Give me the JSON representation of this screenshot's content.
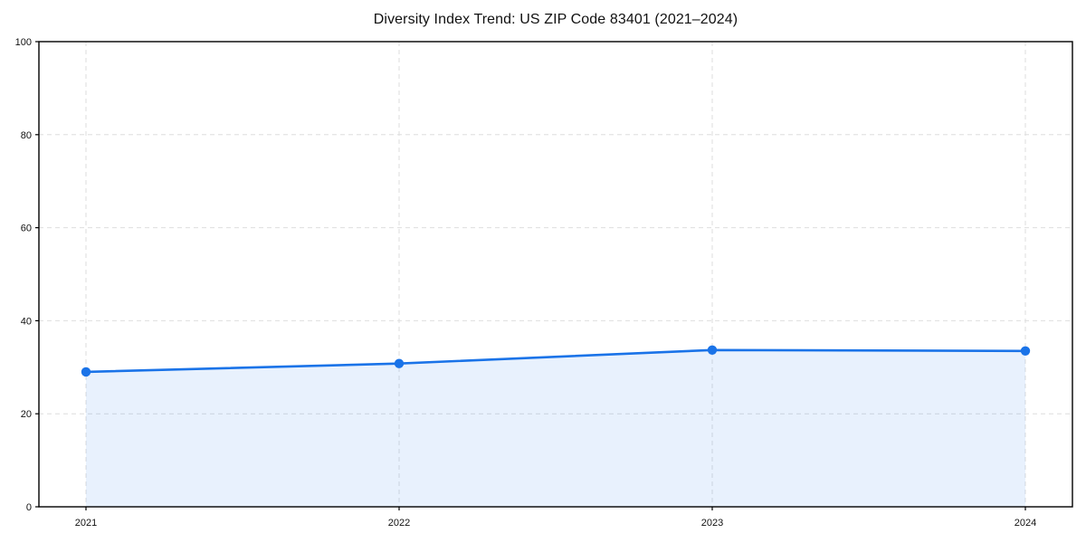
{
  "page": {
    "background": "#ffffff"
  },
  "chart_data": {
    "type": "line",
    "title": "Diversity Index Trend: US ZIP Code 83401 (2021–2024)",
    "x": [
      "2021",
      "2022",
      "2023",
      "2024"
    ],
    "series": [
      {
        "name": "Diversity Index",
        "values": [
          29.0,
          30.8,
          33.7,
          33.5
        ]
      }
    ],
    "xlabel": "",
    "ylabel": "",
    "ylim": [
      0,
      100
    ],
    "yticks": [
      0,
      20,
      40,
      60,
      80,
      100
    ],
    "grid": "dashed",
    "legend": "none",
    "marker": "circle",
    "area_fill": true,
    "colors": {
      "line": "#1a73e8",
      "marker": "#1a73e8",
      "fill": "#1a73e8",
      "fill_opacity": 0.1,
      "grid": "#dedede",
      "spine": "#000000",
      "text": "#111111"
    }
  }
}
